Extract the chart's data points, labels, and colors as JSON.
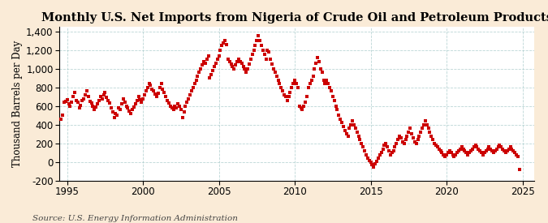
{
  "title": "Monthly U.S. Net Imports from Nigeria of Crude Oil and Petroleum Products",
  "ylabel": "Thousand Barrels per Day",
  "source": "Source: U.S. Energy Information Administration",
  "xlim": [
    1994.5,
    2025.8
  ],
  "ylim": [
    -200,
    1450
  ],
  "yticks": [
    -200,
    0,
    200,
    400,
    600,
    800,
    1000,
    1200,
    1400
  ],
  "xticks": [
    1995,
    2000,
    2005,
    2010,
    2015,
    2020,
    2025
  ],
  "marker_color": "#cc0000",
  "background_color": "#faebd7",
  "plot_bg_color": "#ffffff",
  "title_fontsize": 10.5,
  "label_fontsize": 8.5,
  "tick_fontsize": 8.5,
  "source_fontsize": 7.5,
  "data_points": [
    [
      1994.6,
      460
    ],
    [
      1994.7,
      500
    ],
    [
      1994.8,
      640
    ],
    [
      1994.9,
      650
    ],
    [
      1995.0,
      670
    ],
    [
      1995.1,
      620
    ],
    [
      1995.2,
      600
    ],
    [
      1995.3,
      640
    ],
    [
      1995.4,
      700
    ],
    [
      1995.5,
      750
    ],
    [
      1995.6,
      660
    ],
    [
      1995.7,
      640
    ],
    [
      1995.8,
      580
    ],
    [
      1995.9,
      610
    ],
    [
      1996.0,
      660
    ],
    [
      1996.1,
      680
    ],
    [
      1996.2,
      720
    ],
    [
      1996.3,
      760
    ],
    [
      1996.4,
      700
    ],
    [
      1996.5,
      650
    ],
    [
      1996.6,
      630
    ],
    [
      1996.7,
      600
    ],
    [
      1996.8,
      560
    ],
    [
      1996.9,
      590
    ],
    [
      1997.0,
      620
    ],
    [
      1997.1,
      660
    ],
    [
      1997.2,
      700
    ],
    [
      1997.3,
      680
    ],
    [
      1997.4,
      720
    ],
    [
      1997.5,
      750
    ],
    [
      1997.6,
      690
    ],
    [
      1997.7,
      660
    ],
    [
      1997.8,
      630
    ],
    [
      1997.9,
      580
    ],
    [
      1998.0,
      540
    ],
    [
      1998.1,
      480
    ],
    [
      1998.2,
      520
    ],
    [
      1998.3,
      500
    ],
    [
      1998.4,
      580
    ],
    [
      1998.5,
      560
    ],
    [
      1998.6,
      620
    ],
    [
      1998.7,
      680
    ],
    [
      1998.8,
      640
    ],
    [
      1998.9,
      600
    ],
    [
      1999.0,
      580
    ],
    [
      1999.1,
      550
    ],
    [
      1999.2,
      520
    ],
    [
      1999.3,
      560
    ],
    [
      1999.4,
      590
    ],
    [
      1999.5,
      620
    ],
    [
      1999.6,
      660
    ],
    [
      1999.7,
      700
    ],
    [
      1999.8,
      670
    ],
    [
      1999.9,
      640
    ],
    [
      2000.0,
      680
    ],
    [
      2000.1,
      720
    ],
    [
      2000.2,
      760
    ],
    [
      2000.3,
      800
    ],
    [
      2000.4,
      840
    ],
    [
      2000.5,
      820
    ],
    [
      2000.6,
      780
    ],
    [
      2000.7,
      760
    ],
    [
      2000.8,
      730
    ],
    [
      2000.9,
      700
    ],
    [
      2001.0,
      740
    ],
    [
      2001.1,
      800
    ],
    [
      2001.2,
      840
    ],
    [
      2001.3,
      780
    ],
    [
      2001.4,
      750
    ],
    [
      2001.5,
      700
    ],
    [
      2001.6,
      660
    ],
    [
      2001.7,
      630
    ],
    [
      2001.8,
      600
    ],
    [
      2001.9,
      580
    ],
    [
      2002.0,
      560
    ],
    [
      2002.1,
      600
    ],
    [
      2002.2,
      580
    ],
    [
      2002.3,
      620
    ],
    [
      2002.4,
      600
    ],
    [
      2002.5,
      560
    ],
    [
      2002.6,
      480
    ],
    [
      2002.7,
      540
    ],
    [
      2002.8,
      600
    ],
    [
      2002.9,
      640
    ],
    [
      2003.0,
      680
    ],
    [
      2003.1,
      720
    ],
    [
      2003.2,
      760
    ],
    [
      2003.3,
      800
    ],
    [
      2003.4,
      840
    ],
    [
      2003.5,
      880
    ],
    [
      2003.6,
      920
    ],
    [
      2003.7,
      960
    ],
    [
      2003.8,
      1000
    ],
    [
      2003.9,
      1040
    ],
    [
      2004.0,
      1080
    ],
    [
      2004.1,
      1060
    ],
    [
      2004.2,
      1100
    ],
    [
      2004.3,
      1140
    ],
    [
      2004.4,
      900
    ],
    [
      2004.5,
      940
    ],
    [
      2004.6,
      980
    ],
    [
      2004.7,
      1020
    ],
    [
      2004.8,
      1060
    ],
    [
      2004.9,
      1100
    ],
    [
      2005.0,
      1140
    ],
    [
      2005.1,
      1200
    ],
    [
      2005.2,
      1250
    ],
    [
      2005.3,
      1280
    ],
    [
      2005.4,
      1300
    ],
    [
      2005.5,
      1260
    ],
    [
      2005.6,
      1100
    ],
    [
      2005.7,
      1080
    ],
    [
      2005.8,
      1050
    ],
    [
      2005.9,
      1020
    ],
    [
      2006.0,
      1000
    ],
    [
      2006.1,
      1040
    ],
    [
      2006.2,
      1080
    ],
    [
      2006.3,
      1100
    ],
    [
      2006.4,
      1080
    ],
    [
      2006.5,
      1060
    ],
    [
      2006.6,
      1020
    ],
    [
      2006.7,
      1000
    ],
    [
      2006.8,
      960
    ],
    [
      2006.9,
      1000
    ],
    [
      2007.0,
      1050
    ],
    [
      2007.1,
      1100
    ],
    [
      2007.2,
      1150
    ],
    [
      2007.3,
      1200
    ],
    [
      2007.4,
      1250
    ],
    [
      2007.5,
      1300
    ],
    [
      2007.6,
      1350
    ],
    [
      2007.7,
      1300
    ],
    [
      2007.8,
      1250
    ],
    [
      2007.9,
      1200
    ],
    [
      2008.0,
      1150
    ],
    [
      2008.1,
      1100
    ],
    [
      2008.2,
      1200
    ],
    [
      2008.3,
      1180
    ],
    [
      2008.4,
      1100
    ],
    [
      2008.5,
      1050
    ],
    [
      2008.6,
      1000
    ],
    [
      2008.7,
      960
    ],
    [
      2008.8,
      920
    ],
    [
      2008.9,
      880
    ],
    [
      2009.0,
      840
    ],
    [
      2009.1,
      800
    ],
    [
      2009.2,
      760
    ],
    [
      2009.3,
      720
    ],
    [
      2009.4,
      700
    ],
    [
      2009.5,
      660
    ],
    [
      2009.6,
      700
    ],
    [
      2009.7,
      750
    ],
    [
      2009.8,
      800
    ],
    [
      2009.9,
      840
    ],
    [
      2010.0,
      880
    ],
    [
      2010.1,
      840
    ],
    [
      2010.2,
      800
    ],
    [
      2010.3,
      600
    ],
    [
      2010.4,
      580
    ],
    [
      2010.5,
      560
    ],
    [
      2010.6,
      600
    ],
    [
      2010.7,
      640
    ],
    [
      2010.8,
      700
    ],
    [
      2010.9,
      800
    ],
    [
      2011.0,
      840
    ],
    [
      2011.1,
      880
    ],
    [
      2011.2,
      920
    ],
    [
      2011.3,
      1000
    ],
    [
      2011.4,
      1060
    ],
    [
      2011.5,
      1120
    ],
    [
      2011.6,
      1080
    ],
    [
      2011.7,
      1000
    ],
    [
      2011.8,
      960
    ],
    [
      2011.9,
      880
    ],
    [
      2012.0,
      840
    ],
    [
      2012.1,
      880
    ],
    [
      2012.2,
      840
    ],
    [
      2012.3,
      800
    ],
    [
      2012.4,
      760
    ],
    [
      2012.5,
      700
    ],
    [
      2012.6,
      660
    ],
    [
      2012.7,
      600
    ],
    [
      2012.8,
      560
    ],
    [
      2012.9,
      500
    ],
    [
      2013.0,
      460
    ],
    [
      2013.1,
      420
    ],
    [
      2013.2,
      380
    ],
    [
      2013.3,
      340
    ],
    [
      2013.4,
      300
    ],
    [
      2013.5,
      280
    ],
    [
      2013.6,
      360
    ],
    [
      2013.7,
      400
    ],
    [
      2013.8,
      440
    ],
    [
      2013.9,
      400
    ],
    [
      2014.0,
      360
    ],
    [
      2014.1,
      320
    ],
    [
      2014.2,
      280
    ],
    [
      2014.3,
      240
    ],
    [
      2014.4,
      200
    ],
    [
      2014.5,
      160
    ],
    [
      2014.6,
      120
    ],
    [
      2014.7,
      80
    ],
    [
      2014.8,
      40
    ],
    [
      2014.9,
      20
    ],
    [
      2015.0,
      0
    ],
    [
      2015.1,
      -30
    ],
    [
      2015.2,
      -50
    ],
    [
      2015.3,
      -20
    ],
    [
      2015.4,
      10
    ],
    [
      2015.5,
      40
    ],
    [
      2015.6,
      80
    ],
    [
      2015.7,
      100
    ],
    [
      2015.8,
      140
    ],
    [
      2015.9,
      180
    ],
    [
      2016.0,
      200
    ],
    [
      2016.1,
      160
    ],
    [
      2016.2,
      120
    ],
    [
      2016.3,
      80
    ],
    [
      2016.4,
      100
    ],
    [
      2016.5,
      120
    ],
    [
      2016.6,
      160
    ],
    [
      2016.7,
      200
    ],
    [
      2016.8,
      240
    ],
    [
      2016.9,
      280
    ],
    [
      2017.0,
      260
    ],
    [
      2017.1,
      220
    ],
    [
      2017.2,
      200
    ],
    [
      2017.3,
      240
    ],
    [
      2017.4,
      280
    ],
    [
      2017.5,
      320
    ],
    [
      2017.6,
      360
    ],
    [
      2017.7,
      300
    ],
    [
      2017.8,
      260
    ],
    [
      2017.9,
      220
    ],
    [
      2018.0,
      200
    ],
    [
      2018.1,
      240
    ],
    [
      2018.2,
      280
    ],
    [
      2018.3,
      320
    ],
    [
      2018.4,
      360
    ],
    [
      2018.5,
      400
    ],
    [
      2018.6,
      440
    ],
    [
      2018.7,
      400
    ],
    [
      2018.8,
      360
    ],
    [
      2018.9,
      320
    ],
    [
      2019.0,
      280
    ],
    [
      2019.1,
      240
    ],
    [
      2019.2,
      200
    ],
    [
      2019.3,
      180
    ],
    [
      2019.4,
      160
    ],
    [
      2019.5,
      140
    ],
    [
      2019.6,
      120
    ],
    [
      2019.7,
      100
    ],
    [
      2019.8,
      80
    ],
    [
      2019.9,
      60
    ],
    [
      2020.0,
      80
    ],
    [
      2020.1,
      100
    ],
    [
      2020.2,
      120
    ],
    [
      2020.3,
      100
    ],
    [
      2020.4,
      80
    ],
    [
      2020.5,
      60
    ],
    [
      2020.6,
      80
    ],
    [
      2020.7,
      100
    ],
    [
      2020.8,
      120
    ],
    [
      2020.9,
      140
    ],
    [
      2021.0,
      160
    ],
    [
      2021.1,
      140
    ],
    [
      2021.2,
      120
    ],
    [
      2021.3,
      100
    ],
    [
      2021.4,
      80
    ],
    [
      2021.5,
      100
    ],
    [
      2021.6,
      120
    ],
    [
      2021.7,
      140
    ],
    [
      2021.8,
      160
    ],
    [
      2021.9,
      180
    ],
    [
      2022.0,
      160
    ],
    [
      2022.1,
      140
    ],
    [
      2022.2,
      120
    ],
    [
      2022.3,
      100
    ],
    [
      2022.4,
      80
    ],
    [
      2022.5,
      100
    ],
    [
      2022.6,
      120
    ],
    [
      2022.7,
      140
    ],
    [
      2022.8,
      160
    ],
    [
      2022.9,
      140
    ],
    [
      2023.0,
      120
    ],
    [
      2023.1,
      100
    ],
    [
      2023.2,
      120
    ],
    [
      2023.3,
      140
    ],
    [
      2023.4,
      160
    ],
    [
      2023.5,
      180
    ],
    [
      2023.6,
      160
    ],
    [
      2023.7,
      140
    ],
    [
      2023.8,
      120
    ],
    [
      2023.9,
      100
    ],
    [
      2024.0,
      120
    ],
    [
      2024.1,
      140
    ],
    [
      2024.2,
      160
    ],
    [
      2024.3,
      140
    ],
    [
      2024.4,
      120
    ],
    [
      2024.5,
      100
    ],
    [
      2024.6,
      80
    ],
    [
      2024.7,
      60
    ],
    [
      2024.8,
      -80
    ]
  ]
}
